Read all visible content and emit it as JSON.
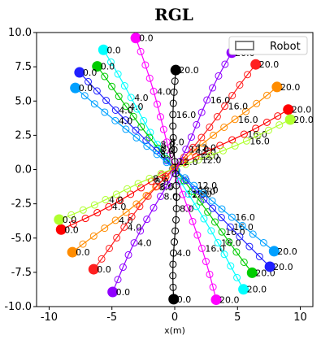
{
  "chart_data": {
    "type": "line",
    "title": "RGL",
    "xlabel": "x(m)",
    "ylabel": "",
    "xlim": [
      -11,
      11
    ],
    "ylim": [
      -10,
      10
    ],
    "xticks": [
      -10,
      -5,
      0,
      5,
      10
    ],
    "yticks": [
      10.0,
      7.5,
      5.0,
      2.5,
      0.0,
      -2.5,
      -5.0,
      -7.5,
      -10.0
    ],
    "legend": {
      "position": "top-right",
      "entries": [
        {
          "label": "Robot",
          "color": "#808080"
        }
      ]
    },
    "time_labels_shown": [
      "0.0",
      "4.0",
      "8.0",
      "12.0",
      "16.0",
      "20.0"
    ],
    "series": [
      {
        "color": "#ff00ff",
        "start": [
          -3.1,
          9.6
        ],
        "end": [
          3.3,
          -9.5
        ]
      },
      {
        "color": "#00ffff",
        "start": [
          -5.8,
          8.8
        ],
        "end": [
          5.6,
          -8.8
        ]
      },
      {
        "color": "#00cc00",
        "start": [
          -6.3,
          7.6
        ],
        "end": [
          6.3,
          -7.6
        ]
      },
      {
        "color": "#2020ff",
        "start": [
          -7.6,
          7.1
        ],
        "end": [
          7.6,
          -7.1
        ]
      },
      {
        "color": "#00a0ff",
        "start": [
          -7.8,
          5.9
        ],
        "end": [
          7.8,
          -5.9
        ]
      },
      {
        "color": "#ff8c00",
        "start": [
          -8.0,
          -6.1
        ],
        "end": [
          8.0,
          6.1
        ]
      },
      {
        "color": "#ff0000",
        "start": [
          -9.0,
          -4.4
        ],
        "end": [
          9.0,
          4.4
        ]
      },
      {
        "color": "#b0ff30",
        "start": [
          -9.3,
          -3.6
        ],
        "end": [
          9.3,
          3.6
        ]
      },
      {
        "color": "#ff2020",
        "start": [
          -6.6,
          -7.2
        ],
        "end": [
          6.6,
          7.6
        ]
      },
      {
        "color": "#9000ff",
        "start": [
          -5.0,
          -8.9
        ],
        "end": [
          4.6,
          8.5
        ]
      },
      {
        "color": "#000000",
        "start": [
          0.0,
          -9.5
        ],
        "end": [
          0.0,
          7.3
        ]
      }
    ]
  }
}
